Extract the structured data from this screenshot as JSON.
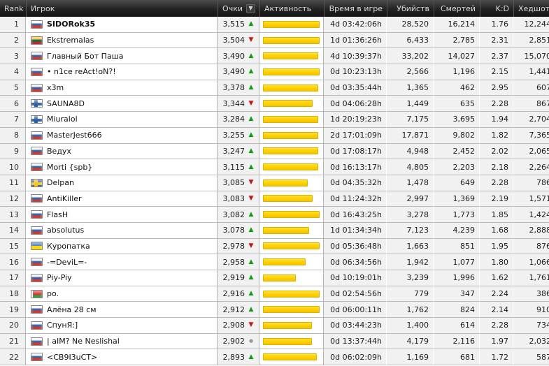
{
  "header": {
    "columns": [
      {
        "key": "rank",
        "label": "Rank",
        "align": "left"
      },
      {
        "key": "player",
        "label": "Игрок",
        "align": "left"
      },
      {
        "key": "points",
        "label": "Очки",
        "align": "right",
        "sorted": true
      },
      {
        "key": "activity",
        "label": "Активность",
        "align": "left"
      },
      {
        "key": "time",
        "label": "Время в игре",
        "align": "right"
      },
      {
        "key": "kills",
        "label": "Убийств",
        "align": "right"
      },
      {
        "key": "deaths",
        "label": "Смертей",
        "align": "right"
      },
      {
        "key": "kd",
        "label": "K:D",
        "align": "right"
      },
      {
        "key": "headshots",
        "label": "Хедшотов",
        "align": "right"
      }
    ],
    "sort_icon": "▼"
  },
  "icons": {
    "trend_up": "▲",
    "trend_down": "▼",
    "trend_flat": "●"
  },
  "colors": {
    "bar": "#ffd400",
    "trend_up": "#159a15",
    "trend_down": "#c01616",
    "trend_flat": "#999999",
    "header_bg": "#1d1d1d",
    "cell_bg": "#f1f1f1"
  },
  "rows": [
    {
      "rank": "1",
      "flag": "ru",
      "name": "SIDORok35",
      "bold": true,
      "points": "3,515",
      "trend": "up",
      "activity_pct": 100,
      "time": "4d 03:42:06h",
      "kills": "28,520",
      "deaths": "16,214",
      "kd": "1.76",
      "headshots": "12,244"
    },
    {
      "rank": "2",
      "flag": "lt",
      "name": "Ekstremalas",
      "bold": false,
      "points": "3,504",
      "trend": "down",
      "activity_pct": 100,
      "time": "1d 01:36:26h",
      "kills": "6,433",
      "deaths": "2,785",
      "kd": "2.31",
      "headshots": "2,851"
    },
    {
      "rank": "3",
      "flag": "ru",
      "name": "Главный Бот Паша",
      "bold": false,
      "points": "3,490",
      "trend": "up",
      "activity_pct": 97,
      "time": "4d 10:39:37h",
      "kills": "33,202",
      "deaths": "14,027",
      "kd": "2.37",
      "headshots": "15,070"
    },
    {
      "rank": "4",
      "flag": "ru",
      "name": "• n1ce reAct!oN?!",
      "bold": false,
      "points": "3,490",
      "trend": "up",
      "activity_pct": 100,
      "time": "0d 10:23:13h",
      "kills": "2,566",
      "deaths": "1,196",
      "kd": "2.15",
      "headshots": "1,441"
    },
    {
      "rank": "5",
      "flag": "ru",
      "name": "x3m",
      "bold": false,
      "points": "3,378",
      "trend": "up",
      "activity_pct": 98,
      "time": "0d 03:35:44h",
      "kills": "1,365",
      "deaths": "462",
      "kd": "2.95",
      "headshots": "607"
    },
    {
      "rank": "6",
      "flag": "fi",
      "name": "SAUNA8D",
      "bold": false,
      "points": "3,344",
      "trend": "down",
      "activity_pct": 88,
      "time": "0d 04:06:28h",
      "kills": "1,449",
      "deaths": "635",
      "kd": "2.28",
      "headshots": "867"
    },
    {
      "rank": "7",
      "flag": "fi",
      "name": "Miuralol",
      "bold": false,
      "points": "3,284",
      "trend": "up",
      "activity_pct": 98,
      "time": "1d 20:19:23h",
      "kills": "7,175",
      "deaths": "3,695",
      "kd": "1.94",
      "headshots": "2,704"
    },
    {
      "rank": "8",
      "flag": "ru",
      "name": "MasterJest666",
      "bold": false,
      "points": "3,255",
      "trend": "up",
      "activity_pct": 98,
      "time": "2d 17:01:09h",
      "kills": "17,871",
      "deaths": "9,802",
      "kd": "1.82",
      "headshots": "7,365"
    },
    {
      "rank": "9",
      "flag": "ru",
      "name": "Ведух",
      "bold": false,
      "points": "3,247",
      "trend": "up",
      "activity_pct": 97,
      "time": "0d 17:08:17h",
      "kills": "4,948",
      "deaths": "2,452",
      "kd": "2.02",
      "headshots": "2,065"
    },
    {
      "rank": "10",
      "flag": "ru",
      "name": "Morti {spb}",
      "bold": false,
      "points": "3,115",
      "trend": "up",
      "activity_pct": 97,
      "time": "0d 16:13:17h",
      "kills": "4,805",
      "deaths": "2,203",
      "kd": "2.18",
      "headshots": "2,264"
    },
    {
      "rank": "11",
      "flag": "se",
      "name": "Delpan",
      "bold": false,
      "points": "3,085",
      "trend": "down",
      "activity_pct": 79,
      "time": "0d 04:35:32h",
      "kills": "1,478",
      "deaths": "649",
      "kd": "2.28",
      "headshots": "786"
    },
    {
      "rank": "12",
      "flag": "ru",
      "name": "AntiKiller",
      "bold": false,
      "points": "3,083",
      "trend": "down",
      "activity_pct": 88,
      "time": "0d 11:24:32h",
      "kills": "2,997",
      "deaths": "1,369",
      "kd": "2.19",
      "headshots": "1,571"
    },
    {
      "rank": "13",
      "flag": "ru",
      "name": "FlasH",
      "bold": false,
      "points": "3,082",
      "trend": "up",
      "activity_pct": 100,
      "time": "0d 16:43:25h",
      "kills": "3,278",
      "deaths": "1,773",
      "kd": "1.85",
      "headshots": "1,424"
    },
    {
      "rank": "14",
      "flag": "ru",
      "name": "absolutus",
      "bold": false,
      "points": "3,078",
      "trend": "up",
      "activity_pct": 82,
      "time": "1d 01:34:34h",
      "kills": "7,123",
      "deaths": "4,239",
      "kd": "1.68",
      "headshots": "2,888"
    },
    {
      "rank": "15",
      "flag": "ua",
      "name": "Куропатка",
      "bold": false,
      "points": "2,978",
      "trend": "down",
      "activity_pct": 100,
      "time": "0d 05:36:48h",
      "kills": "1,663",
      "deaths": "851",
      "kd": "1.95",
      "headshots": "876"
    },
    {
      "rank": "16",
      "flag": "ru",
      "name": "-=DeviL=-",
      "bold": false,
      "points": "2,958",
      "trend": "up",
      "activity_pct": 75,
      "time": "0d 06:34:56h",
      "kills": "1,942",
      "deaths": "1,077",
      "kd": "1.80",
      "headshots": "1,066"
    },
    {
      "rank": "17",
      "flag": "ru",
      "name": "Piy-Piy",
      "bold": false,
      "points": "2,919",
      "trend": "up",
      "activity_pct": 58,
      "time": "0d 10:19:01h",
      "kills": "3,239",
      "deaths": "1,996",
      "kd": "1.62",
      "headshots": "1,761"
    },
    {
      "rank": "18",
      "flag": "by",
      "name": "po.",
      "bold": false,
      "points": "2,916",
      "trend": "up",
      "activity_pct": 100,
      "time": "0d 02:54:56h",
      "kills": "779",
      "deaths": "347",
      "kd": "2.24",
      "headshots": "386"
    },
    {
      "rank": "19",
      "flag": "ru",
      "name": "Алёна 28 см",
      "bold": false,
      "points": "2,912",
      "trend": "up",
      "activity_pct": 100,
      "time": "0d 06:00:11h",
      "kills": "1,762",
      "deaths": "824",
      "kd": "2.14",
      "headshots": "910"
    },
    {
      "rank": "20",
      "flag": "ru",
      "name": "СпунЯ:]",
      "bold": false,
      "points": "2,908",
      "trend": "down",
      "activity_pct": 86,
      "time": "0d 03:44:23h",
      "kills": "1,400",
      "deaths": "614",
      "kd": "2.28",
      "headshots": "734"
    },
    {
      "rank": "21",
      "flag": "ru",
      "name": "| aIM? Ne Neslishal",
      "bold": false,
      "points": "2,902",
      "trend": "flat",
      "activity_pct": 86,
      "time": "0d 13:37:44h",
      "kills": "4,179",
      "deaths": "2,116",
      "kd": "1.97",
      "headshots": "2,032"
    },
    {
      "rank": "22",
      "flag": "ru",
      "name": "<СВ9I3uCT>",
      "bold": false,
      "points": "2,893",
      "trend": "up",
      "activity_pct": 95,
      "time": "0d 06:02:09h",
      "kills": "1,169",
      "deaths": "681",
      "kd": "1.72",
      "headshots": "587"
    }
  ]
}
